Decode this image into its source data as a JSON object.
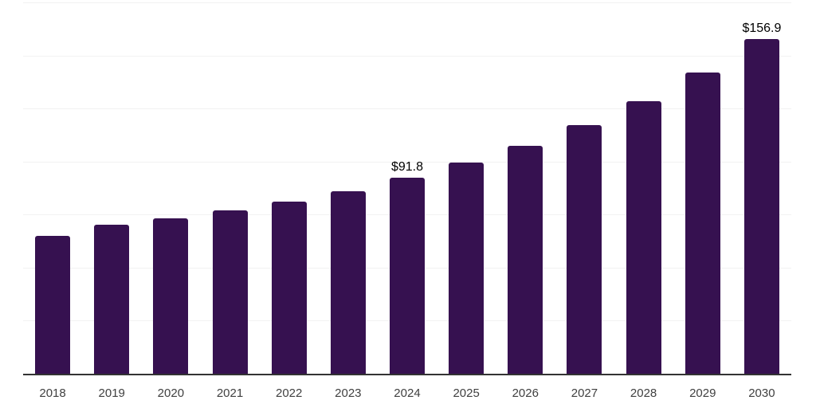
{
  "chart_data": {
    "type": "bar",
    "title": "",
    "xlabel": "",
    "ylabel": "",
    "categories": [
      "2018",
      "2019",
      "2020",
      "2021",
      "2022",
      "2023",
      "2024",
      "2025",
      "2026",
      "2027",
      "2028",
      "2029",
      "2030"
    ],
    "values": [
      64.6,
      69.8,
      72.8,
      76.5,
      80.6,
      85.5,
      91.8,
      98.9,
      106.7,
      116.4,
      127.6,
      141.1,
      156.9
    ],
    "bar_labels": {
      "2024": "$91.8",
      "2030": "$156.9"
    },
    "ylim": [
      0,
      174
    ],
    "y_axis_visible": false,
    "legend": "none",
    "gridlines": {
      "orientation": "horizontal",
      "count": 7,
      "color": "#f2f2f2"
    },
    "colors": {
      "bar": "#361150",
      "background": "#ffffff",
      "axis_line": "#333333",
      "tick_label": "#404040",
      "data_label": "#000000"
    }
  }
}
